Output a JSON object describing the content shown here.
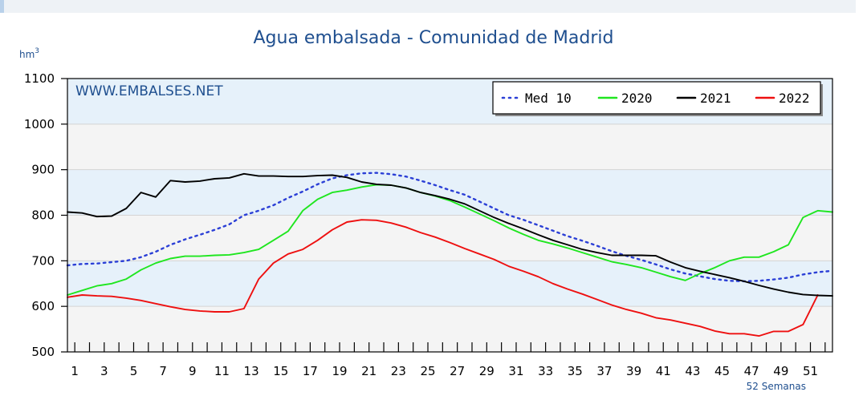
{
  "chart_data": {
    "type": "line",
    "title": "Agua embalsada - Comunidad de Madrid",
    "ylabel": "hm",
    "ylabel_sup": "3",
    "xlabel": "52 Semanas",
    "watermark": "WWW.EMBALSES.NET",
    "ylim": [
      500,
      1100
    ],
    "xlim": [
      0,
      52
    ],
    "yticks": [
      500,
      600,
      700,
      800,
      900,
      1000,
      1100
    ],
    "xtick_labels": [
      1,
      3,
      5,
      7,
      9,
      11,
      13,
      15,
      17,
      19,
      21,
      23,
      25,
      27,
      29,
      31,
      33,
      35,
      37,
      39,
      41,
      43,
      45,
      47,
      49,
      51
    ],
    "grid": true,
    "legend_position": "top-right",
    "series": [
      {
        "name": "Med 10",
        "color": "#2b3fd6",
        "style": "dotted",
        "points": [
          [
            0,
            690
          ],
          [
            1,
            693
          ],
          [
            2,
            694
          ],
          [
            3,
            697
          ],
          [
            4,
            700
          ],
          [
            5,
            708
          ],
          [
            6,
            720
          ],
          [
            7,
            735
          ],
          [
            8,
            747
          ],
          [
            9,
            757
          ],
          [
            10,
            768
          ],
          [
            11,
            780
          ],
          [
            12,
            800
          ],
          [
            13,
            810
          ],
          [
            14,
            822
          ],
          [
            15,
            838
          ],
          [
            16,
            852
          ],
          [
            17,
            868
          ],
          [
            18,
            881
          ],
          [
            19,
            888
          ],
          [
            20,
            892
          ],
          [
            21,
            893
          ],
          [
            22,
            890
          ],
          [
            23,
            885
          ],
          [
            24,
            876
          ],
          [
            25,
            866
          ],
          [
            26,
            855
          ],
          [
            27,
            845
          ],
          [
            28,
            830
          ],
          [
            29,
            815
          ],
          [
            30,
            800
          ],
          [
            31,
            790
          ],
          [
            32,
            778
          ],
          [
            33,
            766
          ],
          [
            34,
            754
          ],
          [
            35,
            744
          ],
          [
            36,
            733
          ],
          [
            37,
            721
          ],
          [
            38,
            711
          ],
          [
            39,
            702
          ],
          [
            40,
            692
          ],
          [
            41,
            681
          ],
          [
            42,
            672
          ],
          [
            43,
            666
          ],
          [
            44,
            660
          ],
          [
            45,
            656
          ],
          [
            46,
            655
          ],
          [
            47,
            656
          ],
          [
            48,
            659
          ],
          [
            49,
            663
          ],
          [
            50,
            670
          ],
          [
            51,
            675
          ],
          [
            52,
            678
          ]
        ]
      },
      {
        "name": "2020",
        "color": "#1fe61f",
        "style": "solid",
        "points": [
          [
            0,
            625
          ],
          [
            1,
            635
          ],
          [
            2,
            645
          ],
          [
            3,
            650
          ],
          [
            4,
            660
          ],
          [
            5,
            680
          ],
          [
            6,
            695
          ],
          [
            7,
            705
          ],
          [
            8,
            710
          ],
          [
            9,
            710
          ],
          [
            10,
            712
          ],
          [
            11,
            713
          ],
          [
            12,
            718
          ],
          [
            13,
            725
          ],
          [
            14,
            745
          ],
          [
            15,
            765
          ],
          [
            16,
            810
          ],
          [
            17,
            835
          ],
          [
            18,
            850
          ],
          [
            19,
            855
          ],
          [
            20,
            862
          ],
          [
            21,
            867
          ],
          [
            22,
            866
          ],
          [
            23,
            860
          ],
          [
            24,
            850
          ],
          [
            25,
            842
          ],
          [
            26,
            832
          ],
          [
            27,
            818
          ],
          [
            28,
            803
          ],
          [
            29,
            788
          ],
          [
            30,
            772
          ],
          [
            31,
            758
          ],
          [
            32,
            745
          ],
          [
            33,
            737
          ],
          [
            34,
            728
          ],
          [
            35,
            718
          ],
          [
            36,
            708
          ],
          [
            37,
            698
          ],
          [
            38,
            692
          ],
          [
            39,
            685
          ],
          [
            40,
            675
          ],
          [
            41,
            665
          ],
          [
            42,
            657
          ],
          [
            43,
            672
          ],
          [
            44,
            685
          ],
          [
            45,
            700
          ],
          [
            46,
            708
          ],
          [
            47,
            708
          ],
          [
            48,
            720
          ],
          [
            49,
            735
          ],
          [
            50,
            795
          ],
          [
            51,
            810
          ],
          [
            52,
            807
          ]
        ]
      },
      {
        "name": "2021",
        "color": "#000000",
        "style": "solid",
        "points": [
          [
            0,
            807
          ],
          [
            1,
            805
          ],
          [
            2,
            797
          ],
          [
            3,
            798
          ],
          [
            4,
            815
          ],
          [
            5,
            850
          ],
          [
            6,
            840
          ],
          [
            7,
            876
          ],
          [
            8,
            873
          ],
          [
            9,
            875
          ],
          [
            10,
            880
          ],
          [
            11,
            882
          ],
          [
            12,
            891
          ],
          [
            13,
            886
          ],
          [
            14,
            886
          ],
          [
            15,
            885
          ],
          [
            16,
            885
          ],
          [
            17,
            887
          ],
          [
            18,
            888
          ],
          [
            19,
            883
          ],
          [
            20,
            873
          ],
          [
            21,
            868
          ],
          [
            22,
            866
          ],
          [
            23,
            860
          ],
          [
            24,
            850
          ],
          [
            25,
            843
          ],
          [
            26,
            835
          ],
          [
            27,
            825
          ],
          [
            28,
            810
          ],
          [
            29,
            795
          ],
          [
            30,
            782
          ],
          [
            31,
            770
          ],
          [
            32,
            757
          ],
          [
            33,
            745
          ],
          [
            34,
            735
          ],
          [
            35,
            725
          ],
          [
            36,
            718
          ],
          [
            37,
            712
          ],
          [
            38,
            712
          ],
          [
            39,
            712
          ],
          [
            40,
            711
          ],
          [
            41,
            697
          ],
          [
            42,
            685
          ],
          [
            43,
            677
          ],
          [
            44,
            670
          ],
          [
            45,
            663
          ],
          [
            46,
            655
          ],
          [
            47,
            646
          ],
          [
            48,
            638
          ],
          [
            49,
            631
          ],
          [
            50,
            626
          ],
          [
            51,
            624
          ],
          [
            52,
            623
          ]
        ]
      },
      {
        "name": "2022",
        "color": "#ee1010",
        "style": "solid",
        "points": [
          [
            0,
            620
          ],
          [
            1,
            625
          ],
          [
            2,
            623
          ],
          [
            3,
            622
          ],
          [
            4,
            618
          ],
          [
            5,
            613
          ],
          [
            6,
            606
          ],
          [
            7,
            599
          ],
          [
            8,
            593
          ],
          [
            9,
            590
          ],
          [
            10,
            588
          ],
          [
            11,
            588
          ],
          [
            12,
            595
          ],
          [
            13,
            660
          ],
          [
            14,
            695
          ],
          [
            15,
            715
          ],
          [
            16,
            725
          ],
          [
            17,
            745
          ],
          [
            18,
            768
          ],
          [
            19,
            785
          ],
          [
            20,
            790
          ],
          [
            21,
            789
          ],
          [
            22,
            783
          ],
          [
            23,
            774
          ],
          [
            24,
            762
          ],
          [
            25,
            752
          ],
          [
            26,
            740
          ],
          [
            27,
            727
          ],
          [
            28,
            715
          ],
          [
            29,
            703
          ],
          [
            30,
            688
          ],
          [
            31,
            677
          ],
          [
            32,
            665
          ],
          [
            33,
            650
          ],
          [
            34,
            638
          ],
          [
            35,
            627
          ],
          [
            36,
            615
          ],
          [
            37,
            603
          ],
          [
            38,
            593
          ],
          [
            39,
            585
          ],
          [
            40,
            575
          ],
          [
            41,
            570
          ],
          [
            42,
            563
          ],
          [
            43,
            556
          ],
          [
            44,
            546
          ],
          [
            45,
            540
          ],
          [
            46,
            540
          ],
          [
            47,
            535
          ],
          [
            48,
            545
          ],
          [
            49,
            545
          ],
          [
            50,
            560
          ],
          [
            51,
            625
          ]
        ]
      }
    ]
  }
}
